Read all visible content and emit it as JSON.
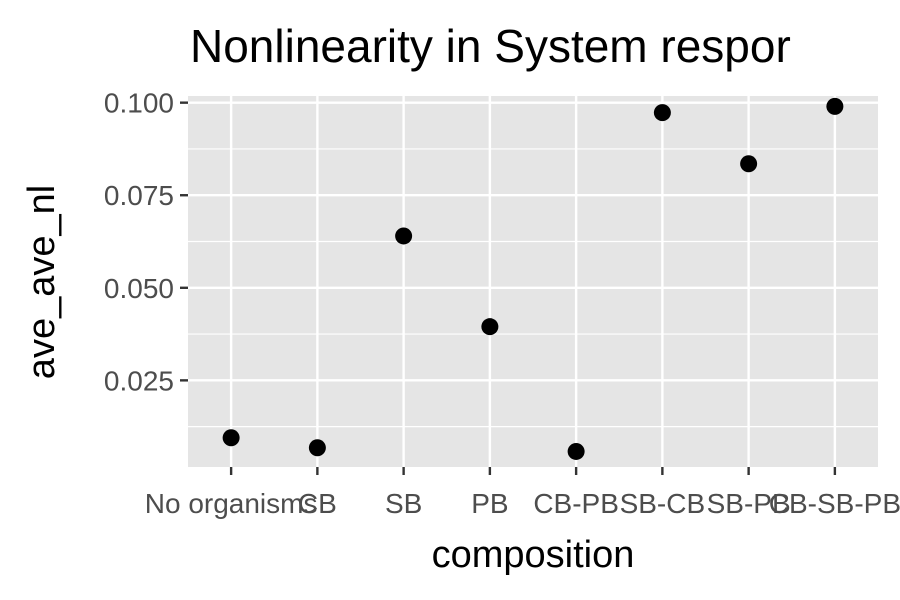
{
  "chart_data": {
    "type": "scatter",
    "title": "Nonlinearity in System respor",
    "xlabel": "composition",
    "ylabel": "ave_ave_nl",
    "categories": [
      "No organisms",
      "CB",
      "SB",
      "PB",
      "CB-PB",
      "SB-CB",
      "SB-PB",
      "CB-SB-PB"
    ],
    "values": [
      0.0095,
      0.0068,
      0.064,
      0.0395,
      0.0058,
      0.0973,
      0.0835,
      0.099
    ],
    "yticks": [
      "0.025",
      "0.050",
      "0.075",
      "0.100"
    ],
    "ylim": [
      0.0016,
      0.1018
    ],
    "grid": true,
    "point_color": "#000000",
    "panel_color": "#e5e5e5",
    "grid_color": "#ffffff"
  }
}
